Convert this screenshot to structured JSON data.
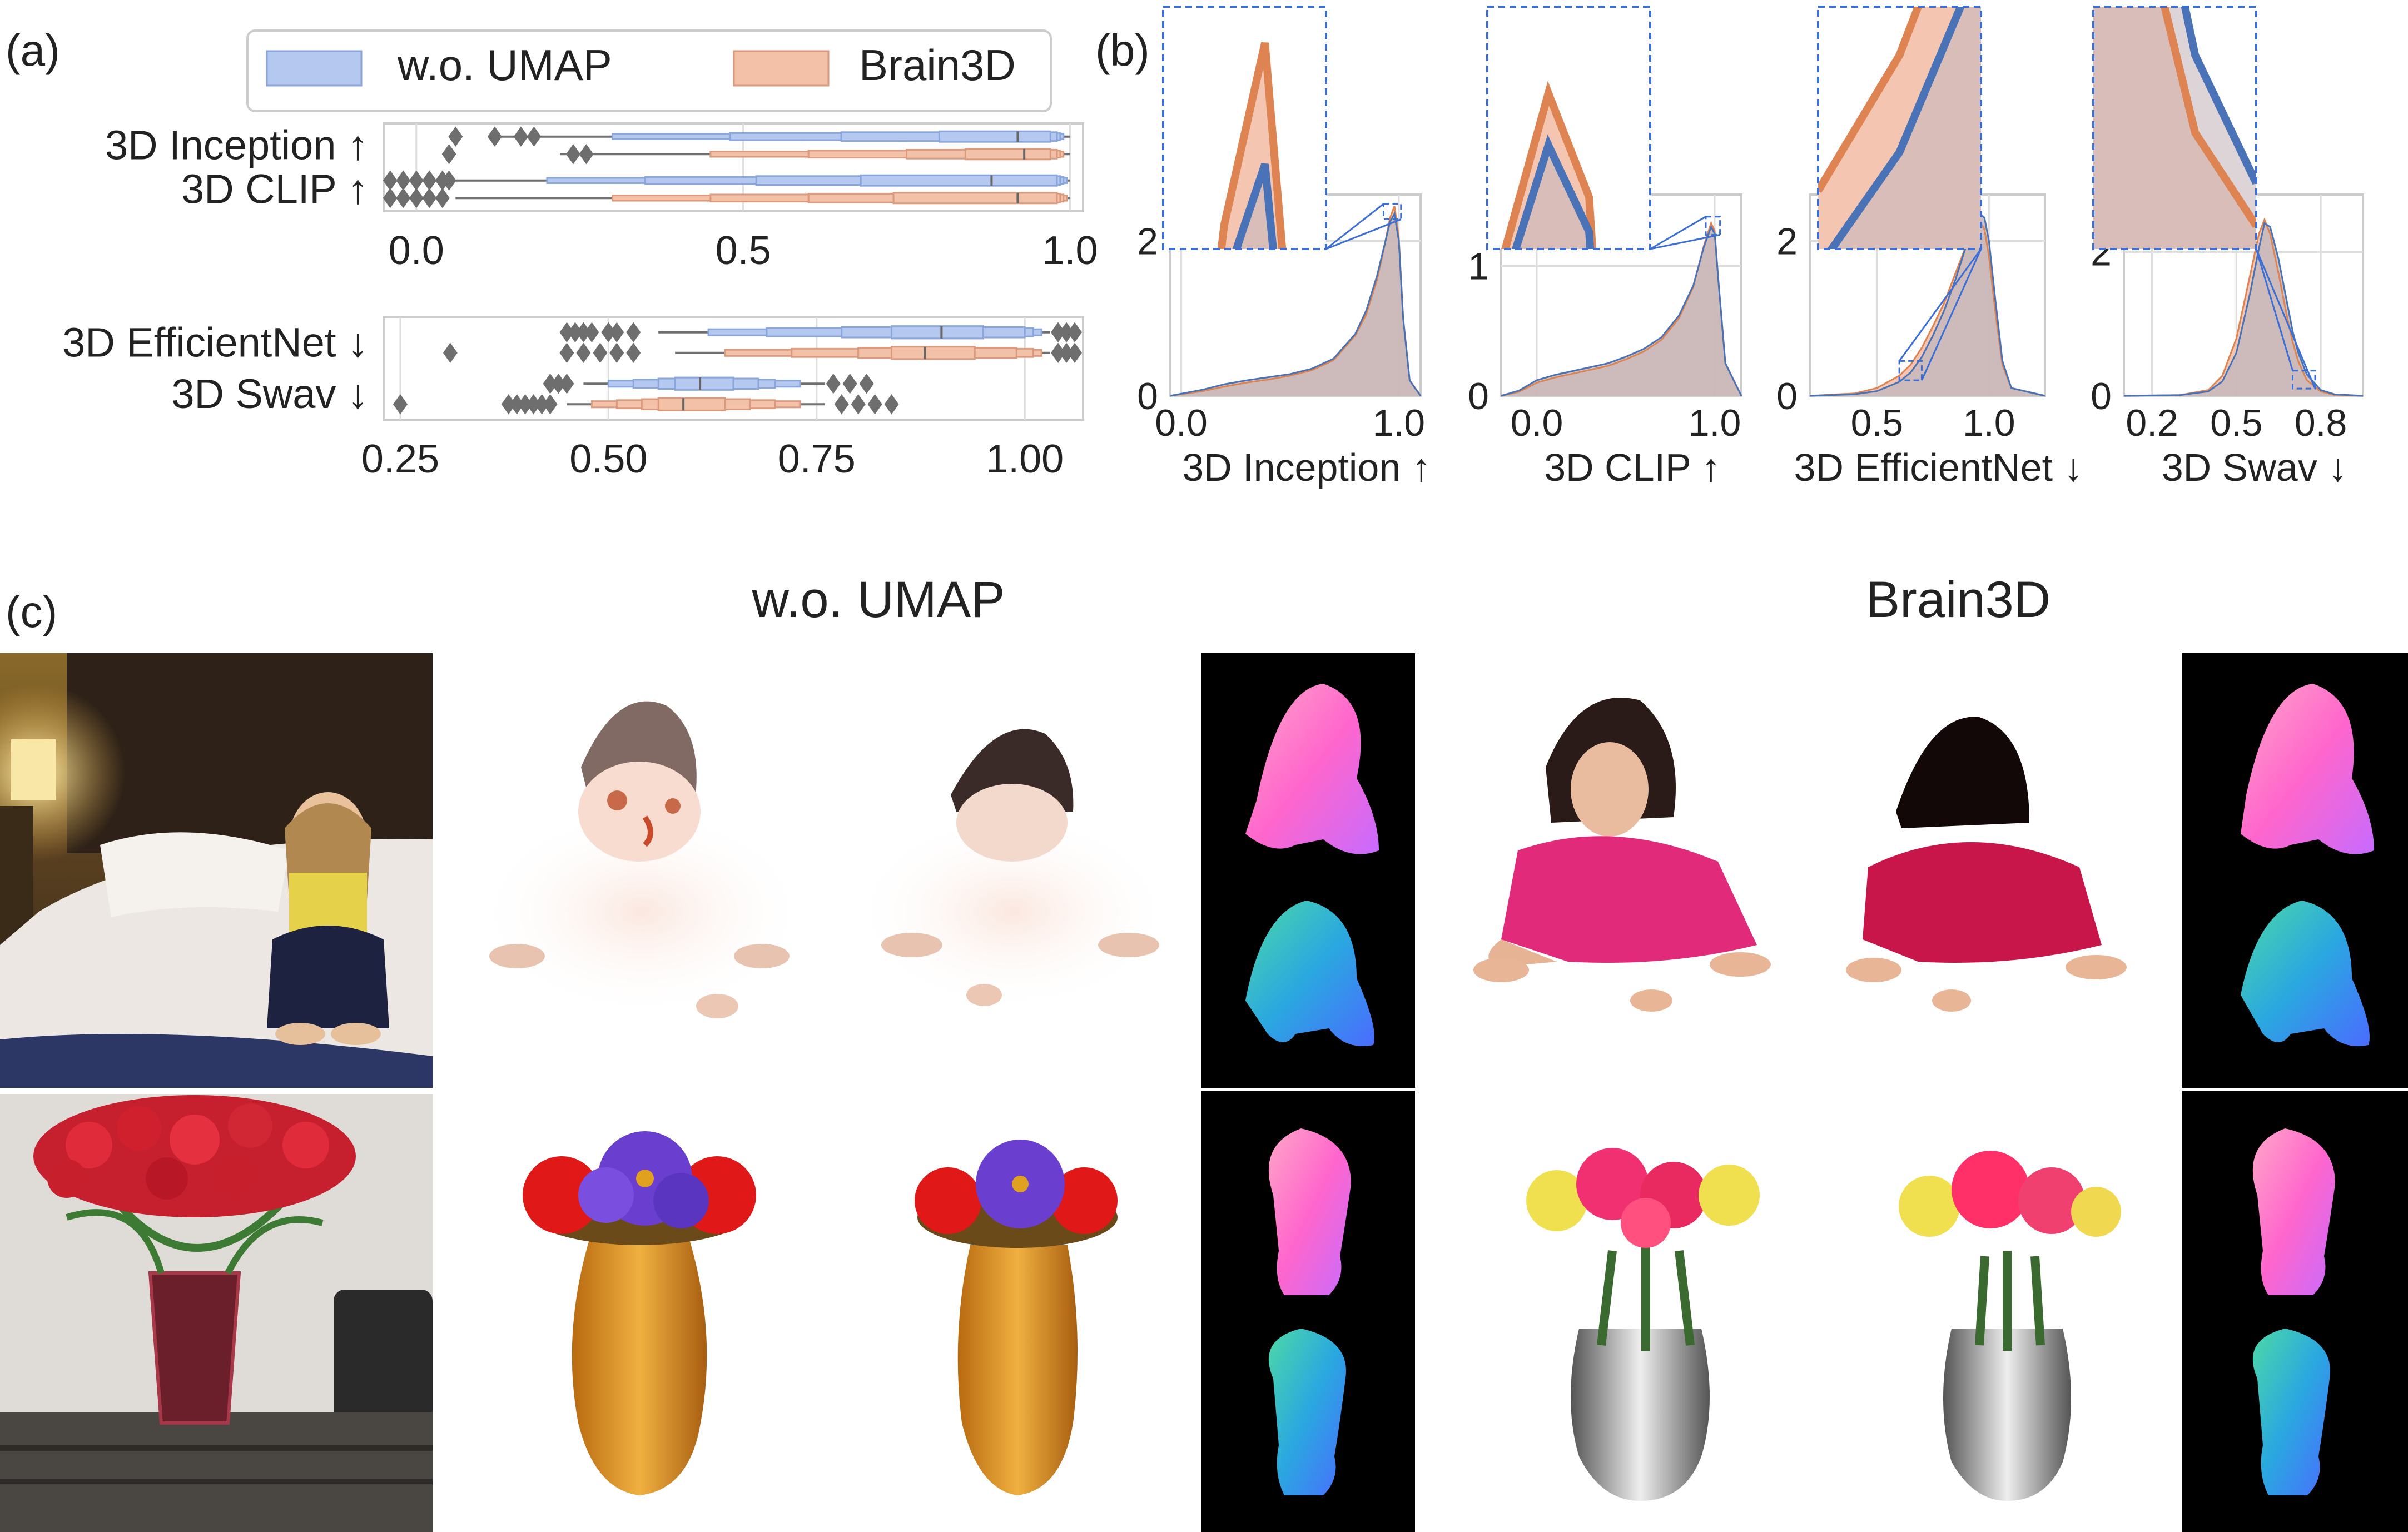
{
  "panel_labels": {
    "a": "(a)",
    "b": "(b)",
    "c": "(c)"
  },
  "legend": [
    {
      "label": "w.o. UMAP",
      "color": "#b4c8f0"
    },
    {
      "label": "Brain3D",
      "color": "#f3c0a8"
    }
  ],
  "colors": {
    "umap_fill": "#b4c8f0",
    "umap_edge": "#8aa6db",
    "umap_line": "#4a72b6",
    "brain_fill": "#f3c0a8",
    "brain_edge": "#d99a7d",
    "brain_line": "#dd8452",
    "overlap": "#c4b8bc",
    "grid": "#dddddd",
    "axis": "#cccccc",
    "zoom_box": "#3b6fd6",
    "gray_bar": "#bdbdbd",
    "whisker": "#707070",
    "outlier": "#6e6e6e"
  },
  "chart_data": [
    {
      "type": "boxen",
      "xlim": [
        -0.05,
        1.02
      ],
      "xticks": [
        "0.0",
        "0.5",
        "1.0"
      ],
      "xtick_values": [
        0,
        0.5,
        1.0
      ],
      "metrics": [
        {
          "label": "3D Inception ↑",
          "umap": {
            "whisker": [
              0.13,
              1.0
            ],
            "boxes": [
              [
                0.3,
                0.99
              ],
              [
                0.48,
                0.985
              ],
              [
                0.65,
                0.98
              ],
              [
                0.8,
                0.97
              ]
            ],
            "median": 0.92,
            "outliers": [
              0.06,
              0.12,
              0.16,
              0.18
            ]
          },
          "brain3d": {
            "whisker": [
              0.22,
              1.0
            ],
            "boxes": [
              [
                0.45,
                0.99
              ],
              [
                0.6,
                0.985
              ],
              [
                0.75,
                0.98
              ],
              [
                0.84,
                0.97
              ]
            ],
            "median": 0.93,
            "outliers": [
              0.05,
              0.24,
              0.26
            ]
          }
        },
        {
          "label": "3D CLIP ↑",
          "umap": {
            "whisker": [
              0.06,
              1.0
            ],
            "boxes": [
              [
                0.2,
                0.995
              ],
              [
                0.35,
                0.99
              ],
              [
                0.52,
                0.985
              ],
              [
                0.68,
                0.98
              ]
            ],
            "median": 0.88,
            "outliers": [
              -0.04,
              -0.02,
              0.0,
              0.02,
              0.04,
              0.05
            ]
          },
          "brain3d": {
            "whisker": [
              0.06,
              1.0
            ],
            "boxes": [
              [
                0.3,
                0.995
              ],
              [
                0.45,
                0.99
              ],
              [
                0.6,
                0.985
              ],
              [
                0.73,
                0.98
              ]
            ],
            "median": 0.92,
            "outliers": [
              -0.04,
              -0.02,
              0.0,
              0.02,
              0.04
            ]
          }
        }
      ]
    },
    {
      "type": "boxen",
      "xlim": [
        0.23,
        1.07
      ],
      "xticks": [
        "0.25",
        "0.50",
        "0.75",
        "1.00"
      ],
      "xtick_values": [
        0.25,
        0.5,
        0.75,
        1.0
      ],
      "metrics": [
        {
          "label": "3D EfficientNet ↓",
          "umap": {
            "whisker": [
              0.56,
              1.03
            ],
            "boxes": [
              [
                0.62,
                1.02
              ],
              [
                0.69,
                1.01
              ],
              [
                0.78,
                1.0
              ],
              [
                0.84,
                0.95
              ]
            ],
            "median": 0.9,
            "outliers": [
              0.45,
              0.46,
              0.47,
              0.48,
              0.5,
              0.51,
              0.53,
              1.04,
              1.05,
              1.06
            ]
          },
          "brain3d": {
            "whisker": [
              0.58,
              1.03
            ],
            "boxes": [
              [
                0.64,
                1.02
              ],
              [
                0.72,
                1.01
              ],
              [
                0.8,
                0.99
              ],
              [
                0.84,
                0.94
              ]
            ],
            "median": 0.88,
            "outliers": [
              0.31,
              0.45,
              0.47,
              0.49,
              0.51,
              0.53,
              1.04,
              1.05,
              1.06
            ]
          }
        },
        {
          "label": "3D Swav ↓",
          "umap": {
            "whisker": [
              0.47,
              0.76
            ],
            "boxes": [
              [
                0.5,
                0.73
              ],
              [
                0.53,
                0.7
              ],
              [
                0.56,
                0.68
              ],
              [
                0.58,
                0.65
              ]
            ],
            "median": 0.61,
            "outliers": [
              0.43,
              0.44,
              0.45,
              0.77,
              0.79,
              0.81
            ]
          },
          "brain3d": {
            "whisker": [
              0.45,
              0.76
            ],
            "boxes": [
              [
                0.48,
                0.73
              ],
              [
                0.51,
                0.7
              ],
              [
                0.54,
                0.67
              ],
              [
                0.56,
                0.64
              ]
            ],
            "median": 0.59,
            "outliers": [
              0.25,
              0.38,
              0.39,
              0.4,
              0.41,
              0.42,
              0.43,
              0.78,
              0.8,
              0.82,
              0.84
            ]
          }
        }
      ]
    },
    {
      "type": "area",
      "xlabel": "3D Inception ↑",
      "xlim": [
        -0.05,
        1.1
      ],
      "ylim": [
        0,
        2.6
      ],
      "xticks": [
        "0.0",
        "1.0"
      ],
      "xtick_values": [
        0,
        1.0
      ],
      "yticks": [
        "0",
        "2"
      ],
      "ytick_values": [
        0,
        2
      ],
      "x": [
        -0.05,
        0.1,
        0.2,
        0.3,
        0.4,
        0.5,
        0.6,
        0.7,
        0.8,
        0.85,
        0.9,
        0.93,
        0.96,
        0.98,
        1.0,
        1.02,
        1.05,
        1.1
      ],
      "series": [
        {
          "values": [
            0.0,
            0.08,
            0.15,
            0.2,
            0.24,
            0.28,
            0.35,
            0.48,
            0.8,
            1.1,
            1.55,
            1.9,
            2.25,
            2.35,
            2.0,
            1.0,
            0.2,
            0.0
          ]
        },
        {
          "values": [
            0.0,
            0.06,
            0.12,
            0.17,
            0.21,
            0.26,
            0.33,
            0.46,
            0.78,
            1.05,
            1.5,
            1.88,
            2.3,
            2.45,
            2.05,
            1.0,
            0.2,
            0.0
          ]
        }
      ]
    },
    {
      "type": "area",
      "xlabel": "3D CLIP ↑",
      "xlim": [
        -0.2,
        1.15
      ],
      "ylim": [
        0,
        1.55
      ],
      "xticks": [
        "0.0",
        "1.0"
      ],
      "xtick_values": [
        0,
        1.0
      ],
      "yticks": [
        "0",
        "1"
      ],
      "ytick_values": [
        0,
        1
      ],
      "x": [
        -0.2,
        -0.1,
        0.0,
        0.1,
        0.2,
        0.3,
        0.4,
        0.5,
        0.6,
        0.7,
        0.8,
        0.88,
        0.94,
        0.98,
        1.0,
        1.02,
        1.06,
        1.15
      ],
      "series": [
        {
          "values": [
            0.0,
            0.04,
            0.12,
            0.16,
            0.19,
            0.22,
            0.25,
            0.3,
            0.36,
            0.45,
            0.62,
            0.85,
            1.15,
            1.3,
            1.25,
            0.9,
            0.25,
            0.0
          ]
        },
        {
          "values": [
            0.0,
            0.03,
            0.1,
            0.14,
            0.17,
            0.2,
            0.23,
            0.28,
            0.34,
            0.43,
            0.6,
            0.84,
            1.16,
            1.33,
            1.27,
            0.9,
            0.25,
            0.0
          ]
        }
      ]
    },
    {
      "type": "area",
      "xlabel": "3D EfficientNet ↓",
      "xlim": [
        0.2,
        1.25
      ],
      "ylim": [
        0,
        2.6
      ],
      "xticks": [
        "0.5",
        "1.0"
      ],
      "xtick_values": [
        0.5,
        1.0
      ],
      "yticks": [
        "0",
        "2"
      ],
      "ytick_values": [
        0,
        2
      ],
      "x": [
        0.2,
        0.4,
        0.5,
        0.6,
        0.65,
        0.7,
        0.75,
        0.8,
        0.85,
        0.9,
        0.93,
        0.96,
        0.98,
        1.0,
        1.03,
        1.06,
        1.1,
        1.25
      ],
      "series": [
        {
          "values": [
            0.0,
            0.02,
            0.06,
            0.18,
            0.3,
            0.5,
            0.78,
            1.1,
            1.5,
            1.95,
            2.2,
            2.35,
            2.3,
            2.0,
            1.2,
            0.45,
            0.1,
            0.0
          ]
        },
        {
          "values": [
            0.0,
            0.03,
            0.1,
            0.26,
            0.4,
            0.62,
            0.9,
            1.2,
            1.58,
            1.95,
            2.15,
            2.25,
            2.15,
            1.8,
            1.05,
            0.4,
            0.1,
            0.0
          ]
        }
      ]
    },
    {
      "type": "area",
      "xlabel": "3D Swav ↓",
      "xlim": [
        0.1,
        0.95
      ],
      "ylim": [
        0,
        2.8
      ],
      "xticks": [
        "0.2",
        "0.5",
        "0.8"
      ],
      "xtick_values": [
        0.2,
        0.5,
        0.8
      ],
      "yticks": [
        "0",
        "2"
      ],
      "ytick_values": [
        0,
        2
      ],
      "x": [
        0.1,
        0.3,
        0.4,
        0.45,
        0.5,
        0.55,
        0.58,
        0.6,
        0.62,
        0.65,
        0.68,
        0.7,
        0.72,
        0.75,
        0.8,
        0.85,
        0.95
      ],
      "series": [
        {
          "values": [
            0.0,
            0.01,
            0.06,
            0.2,
            0.6,
            1.45,
            2.05,
            2.4,
            2.35,
            1.9,
            1.3,
            0.9,
            0.6,
            0.3,
            0.08,
            0.02,
            0.0
          ]
        },
        {
          "values": [
            0.0,
            0.01,
            0.08,
            0.28,
            0.8,
            1.7,
            2.25,
            2.45,
            2.25,
            1.7,
            1.1,
            0.75,
            0.48,
            0.22,
            0.06,
            0.01,
            0.0
          ]
        }
      ]
    }
  ],
  "panel_c": {
    "titles": [
      "w.o. UMAP",
      "Brain3D"
    ]
  }
}
